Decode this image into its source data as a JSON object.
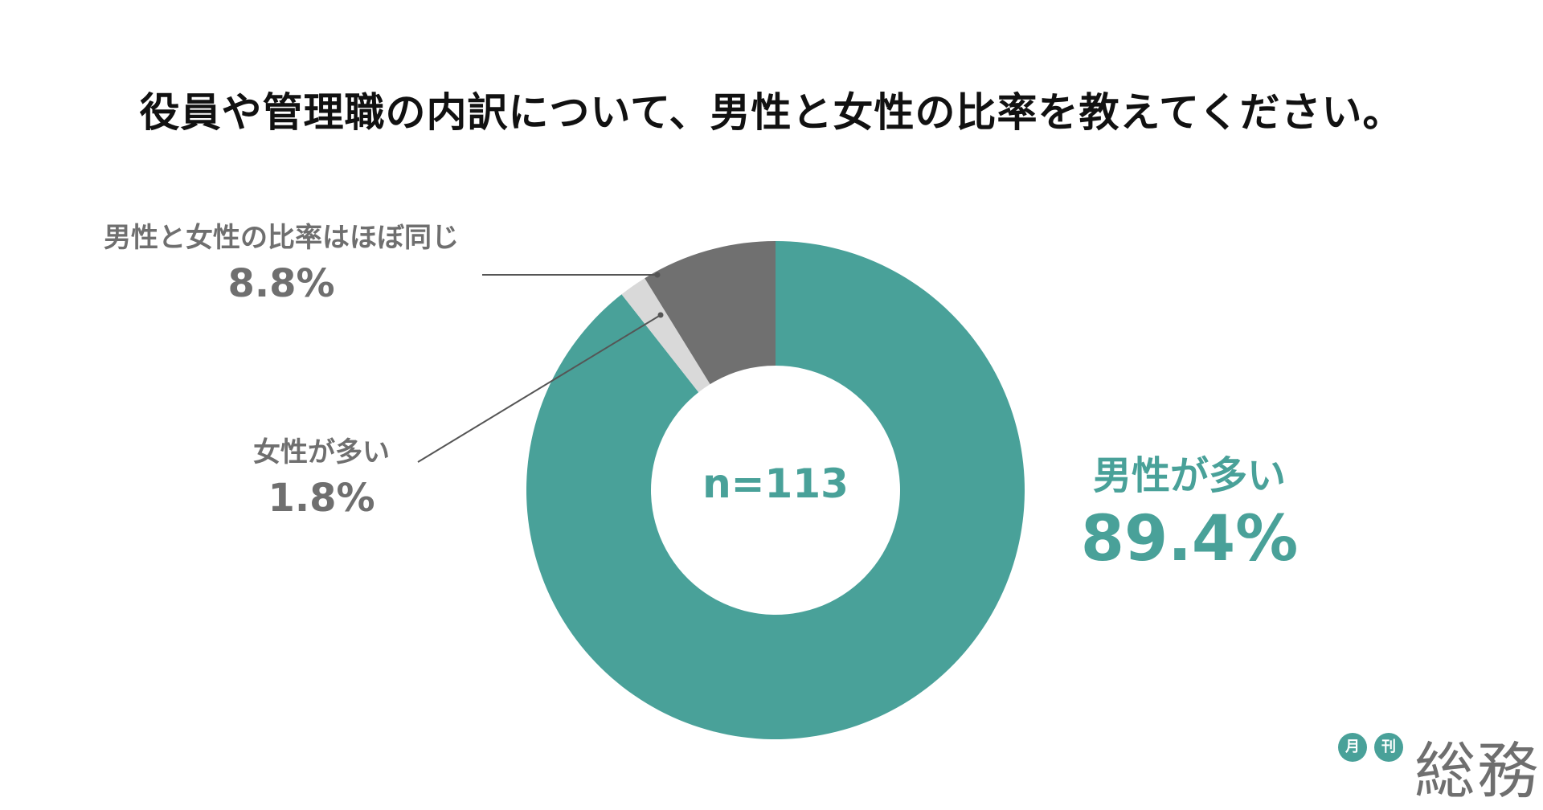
{
  "chart_data": {
    "type": "pie",
    "title": "役員や管理職の内訳について、男性と女性の比率を教えてください。",
    "sample_size_label": "n=113",
    "slices": [
      {
        "label": "男性が多い",
        "value": 89.4,
        "value_label": "89.4%",
        "color": "#49a199"
      },
      {
        "label": "女性が多い",
        "value": 1.8,
        "value_label": "1.8%",
        "color": "#d9d9d9"
      },
      {
        "label": "男性と女性の比率はほぼ同じ",
        "value": 8.8,
        "value_label": "8.8%",
        "color": "#707070"
      }
    ],
    "hole_color": "#ffffff"
  },
  "logo": {
    "badge_1": "月",
    "badge_2": "刊",
    "word": "総務"
  }
}
